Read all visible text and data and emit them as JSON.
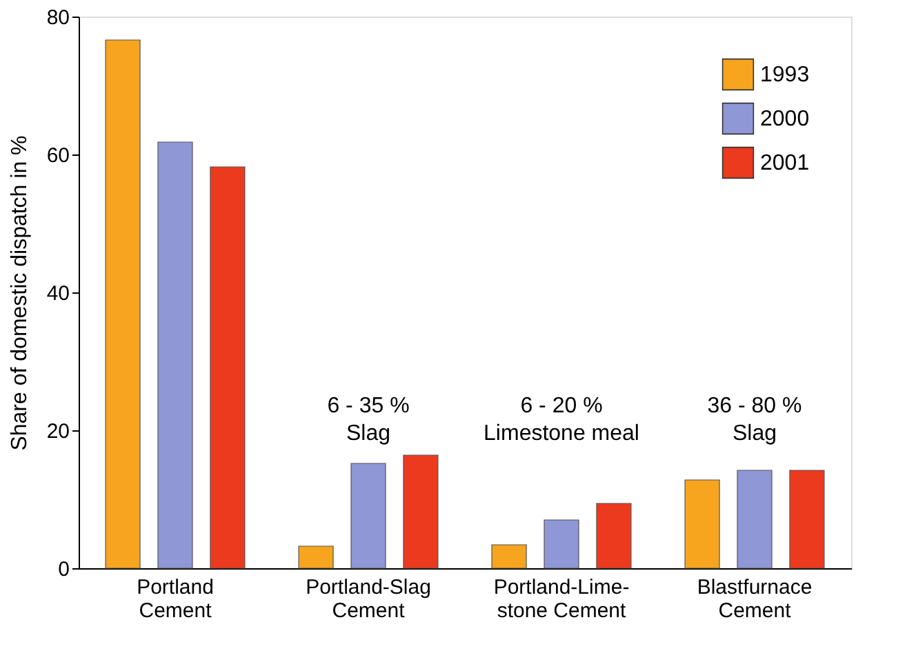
{
  "chart_data": {
    "type": "bar",
    "ylabel": "Share of domestic dispatch in %",
    "categories": [
      "Portland\nCement",
      "Portland-Slag\nCement",
      "Portland-Lime-\nstone Cement",
      "Blastfurnace\nCement"
    ],
    "series": [
      {
        "name": "1993",
        "color": "#f7a51e",
        "values": [
          76.6,
          3.2,
          3.4,
          12.8
        ]
      },
      {
        "name": "2000",
        "color": "#8f97d6",
        "values": [
          61.8,
          15.2,
          7.0,
          14.2
        ]
      },
      {
        "name": "2001",
        "color": "#ec3a1e",
        "values": [
          58.2,
          16.4,
          9.4,
          14.2
        ]
      }
    ],
    "ylim": [
      0,
      80
    ],
    "yticks": [
      0,
      20,
      40,
      60,
      80
    ],
    "grid": false,
    "legend": "top right",
    "annotations": [
      "6 - 35 %\nSlag",
      "6 - 20 %\nLimestone meal",
      "36 - 80 %\nSlag"
    ]
  }
}
